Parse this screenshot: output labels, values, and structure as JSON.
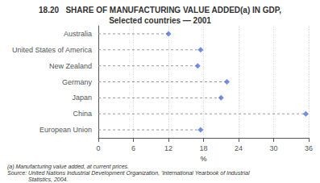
{
  "chart_data": {
    "type": "lollipop",
    "title": "18.20   SHARE OF MANUFACTURING VALUE ADDED(a) IN GDP,",
    "subtitle": "Selected countries — 2001",
    "categories": [
      "Australia",
      "United States of America",
      "New Zealand",
      "Germany",
      "Japan",
      "China",
      "European Union"
    ],
    "values": [
      12.0,
      17.5,
      17.0,
      22.0,
      21.0,
      35.5,
      17.5
    ],
    "orientation": "horizontal",
    "xlim": [
      0,
      36
    ],
    "xticks": [
      0,
      6,
      12,
      18,
      24,
      30,
      36
    ],
    "xlabel": "%",
    "grid": true,
    "marker": "diamond",
    "line_style": "dashed",
    "annotations": [
      "(a) Manufacturing value added, at current prices.",
      "Source: United Nations Industrial Development Organization, 'International Yearbook of Industrial",
      "Statistics, 2004."
    ]
  }
}
